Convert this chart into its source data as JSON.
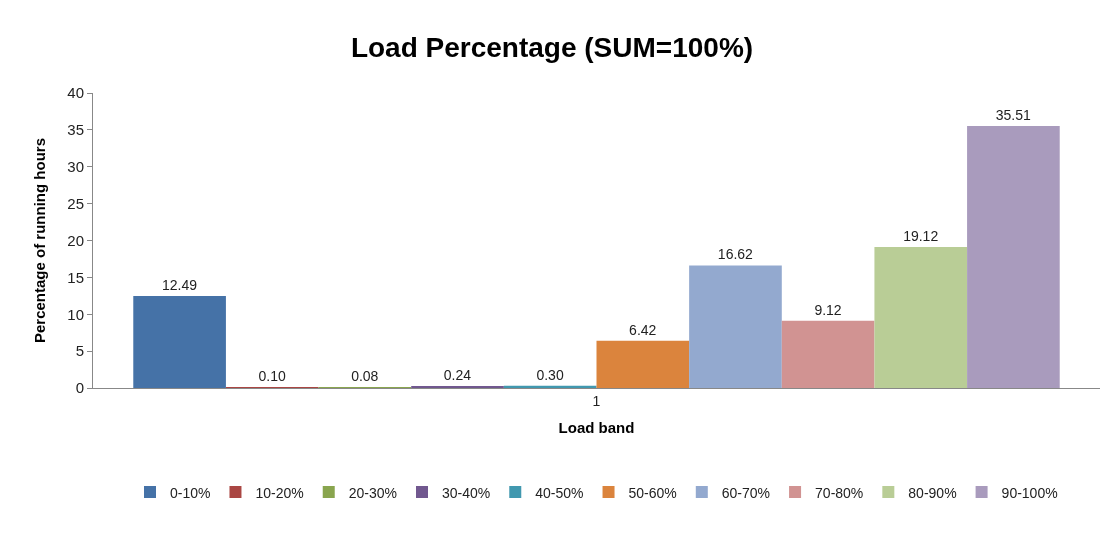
{
  "chart_data": {
    "type": "bar",
    "title": "Load Percentage (SUM=100%)",
    "xlabel": "Load band",
    "ylabel": "Percentage of running hours",
    "categories": [
      "1"
    ],
    "series": [
      {
        "name": "0-10%",
        "color": "#4572a7",
        "values": [
          12.49
        ],
        "value_labels": [
          "12.49"
        ]
      },
      {
        "name": "10-20%",
        "color": "#aa4643",
        "values": [
          0.1
        ],
        "value_labels": [
          "0.10"
        ]
      },
      {
        "name": "20-30%",
        "color": "#89a54e",
        "values": [
          0.08
        ],
        "value_labels": [
          "0.08"
        ]
      },
      {
        "name": "30-40%",
        "color": "#71588f",
        "values": [
          0.24
        ],
        "value_labels": [
          "0.24"
        ]
      },
      {
        "name": "40-50%",
        "color": "#4198af",
        "values": [
          0.3
        ],
        "value_labels": [
          "0.30"
        ]
      },
      {
        "name": "50-60%",
        "color": "#db843d",
        "values": [
          6.42
        ],
        "value_labels": [
          "6.42"
        ]
      },
      {
        "name": "60-70%",
        "color": "#93a9cf",
        "values": [
          16.62
        ],
        "value_labels": [
          "16.62"
        ]
      },
      {
        "name": "70-80%",
        "color": "#d19392",
        "values": [
          9.12
        ],
        "value_labels": [
          "9.12"
        ]
      },
      {
        "name": "80-90%",
        "color": "#b9cd96",
        "values": [
          19.12
        ],
        "value_labels": [
          "19.12"
        ]
      },
      {
        "name": "90-100%",
        "color": "#a99bbd",
        "values": [
          35.51
        ],
        "value_labels": [
          "35.51"
        ]
      }
    ],
    "ylim": [
      0,
      40
    ],
    "yticks": [
      0,
      5,
      10,
      15,
      20,
      25,
      30,
      35,
      40
    ],
    "grid": false,
    "legend": "bottom"
  }
}
